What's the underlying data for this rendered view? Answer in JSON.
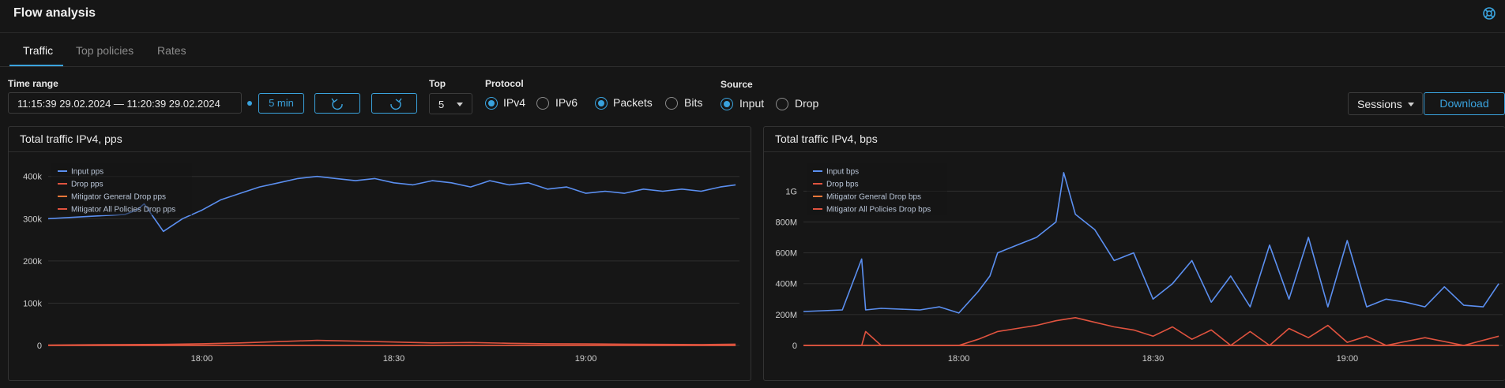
{
  "app": {
    "title": "Flow analysis"
  },
  "tabs": [
    {
      "label": "Traffic"
    },
    {
      "label": "Top policies"
    },
    {
      "label": "Rates"
    }
  ],
  "toolbar": {
    "time_range_label": "Time range",
    "time_range_value": "11:15:39 29.02.2024 — 11:20:39 29.02.2024",
    "interval_label": "5 min",
    "top_label": "Top",
    "top_value": "5",
    "protocol_label": "Protocol",
    "protocol_options": [
      {
        "label": "IPv4",
        "selected": true
      },
      {
        "label": "IPv6",
        "selected": false
      }
    ],
    "unit_options": [
      {
        "label": "Packets",
        "selected": true
      },
      {
        "label": "Bits",
        "selected": false
      }
    ],
    "source_label": "Source",
    "source_options": [
      {
        "label": "Input",
        "selected": true
      },
      {
        "label": "Drop",
        "selected": false
      }
    ],
    "sessions_label": "Sessions",
    "download_label": "Download"
  },
  "colors": {
    "accent": "#3aa3de",
    "input_series": "#5b8ff0",
    "drop_series": "#e0533f",
    "mitigator_general": "#f0773a",
    "mitigator_all": "#e0533f"
  },
  "chart_data": [
    {
      "type": "line",
      "title": "Total traffic IPv4, pps",
      "x_ticks": [
        "18:00",
        "18:30",
        "19:00"
      ],
      "x_tick_positions": [
        18.0,
        18.5,
        19.0
      ],
      "x_range": [
        17.6,
        19.4
      ],
      "y_ticks": [
        "0",
        "100k",
        "200k",
        "300k",
        "400k"
      ],
      "y_tick_values": [
        0,
        100000,
        200000,
        300000,
        400000
      ],
      "ylim": [
        0,
        420000
      ],
      "legend": [
        "Input pps",
        "Drop pps",
        "Mitigator General Drop pps",
        "Mitigator All Policies Drop pps"
      ],
      "series": [
        {
          "name": "Input pps",
          "color": "#5b8ff0",
          "x": [
            17.6,
            17.7,
            17.8,
            17.83,
            17.85,
            17.9,
            17.95,
            18.0,
            18.05,
            18.1,
            18.15,
            18.2,
            18.25,
            18.3,
            18.35,
            18.4,
            18.45,
            18.5,
            18.55,
            18.6,
            18.65,
            18.7,
            18.75,
            18.8,
            18.85,
            18.9,
            18.95,
            19.0,
            19.05,
            19.1,
            19.15,
            19.2,
            19.25,
            19.3,
            19.35,
            19.39
          ],
          "y": [
            300000,
            305000,
            310000,
            320000,
            335000,
            270000,
            300000,
            320000,
            345000,
            360000,
            375000,
            385000,
            395000,
            400000,
            395000,
            390000,
            395000,
            385000,
            380000,
            390000,
            385000,
            375000,
            390000,
            380000,
            385000,
            370000,
            375000,
            360000,
            365000,
            360000,
            370000,
            365000,
            370000,
            365000,
            375000,
            380000
          ]
        },
        {
          "name": "Drop pps",
          "color": "#e0533f",
          "x": [
            17.6,
            17.7,
            17.8,
            17.9,
            18.0,
            18.1,
            18.2,
            18.3,
            18.4,
            18.5,
            18.6,
            18.7,
            18.8,
            18.9,
            19.0,
            19.1,
            19.2,
            19.3,
            19.39
          ],
          "y": [
            1000,
            1500,
            2000,
            2500,
            4000,
            6000,
            9000,
            12000,
            10000,
            8000,
            6000,
            7000,
            5000,
            4000,
            3500,
            3000,
            2500,
            2000,
            3000
          ]
        },
        {
          "name": "Mitigator General Drop pps",
          "color": "#f0773a",
          "x": [
            17.6,
            19.39
          ],
          "y": [
            0,
            0
          ]
        },
        {
          "name": "Mitigator All Policies Drop pps",
          "color": "#e0533f",
          "x": [
            17.6,
            19.39
          ],
          "y": [
            0,
            0
          ]
        }
      ]
    },
    {
      "type": "line",
      "title": "Total traffic IPv4, bps",
      "x_ticks": [
        "18:00",
        "18:30",
        "19:00"
      ],
      "x_tick_positions": [
        18.0,
        18.5,
        19.0
      ],
      "x_range": [
        17.6,
        19.4
      ],
      "y_ticks": [
        "0",
        "200M",
        "400M",
        "600M",
        "800M",
        "1G"
      ],
      "y_tick_values": [
        0,
        200,
        400,
        600,
        800,
        1000
      ],
      "ylim": [
        0,
        1150
      ],
      "legend": [
        "Input bps",
        "Drop bps",
        "Mitigator General Drop bps",
        "Mitigator All Policies Drop bps"
      ],
      "series": [
        {
          "name": "Input bps",
          "color": "#5b8ff0",
          "x": [
            17.6,
            17.7,
            17.75,
            17.76,
            17.8,
            17.9,
            17.95,
            18.0,
            18.05,
            18.08,
            18.1,
            18.15,
            18.2,
            18.25,
            18.27,
            18.3,
            18.35,
            18.4,
            18.45,
            18.5,
            18.55,
            18.6,
            18.65,
            18.7,
            18.75,
            18.8,
            18.85,
            18.9,
            18.95,
            19.0,
            19.05,
            19.1,
            19.15,
            19.2,
            19.25,
            19.3,
            19.35,
            19.39
          ],
          "y": [
            220,
            230,
            560,
            230,
            240,
            230,
            250,
            210,
            350,
            450,
            600,
            650,
            700,
            800,
            1120,
            850,
            750,
            550,
            600,
            300,
            400,
            550,
            280,
            450,
            250,
            650,
            300,
            700,
            250,
            680,
            250,
            300,
            280,
            250,
            380,
            260,
            250,
            400
          ]
        },
        {
          "name": "Drop bps",
          "color": "#e0533f",
          "x": [
            17.6,
            17.75,
            17.76,
            17.8,
            18.0,
            18.05,
            18.1,
            18.15,
            18.2,
            18.25,
            18.3,
            18.35,
            18.4,
            18.45,
            18.5,
            18.55,
            18.6,
            18.65,
            18.7,
            18.75,
            18.8,
            18.85,
            18.9,
            18.95,
            19.0,
            19.05,
            19.1,
            19.2,
            19.3,
            19.39
          ],
          "y": [
            0,
            0,
            90,
            0,
            0,
            40,
            90,
            110,
            130,
            160,
            180,
            150,
            120,
            100,
            60,
            120,
            40,
            100,
            0,
            90,
            0,
            110,
            50,
            130,
            20,
            60,
            0,
            50,
            0,
            60
          ]
        },
        {
          "name": "Mitigator General Drop bps",
          "color": "#f0773a",
          "x": [
            17.6,
            19.39
          ],
          "y": [
            0,
            0
          ]
        },
        {
          "name": "Mitigator All Policies Drop bps",
          "color": "#e0533f",
          "x": [
            17.6,
            19.39
          ],
          "y": [
            0,
            0
          ]
        }
      ]
    }
  ]
}
